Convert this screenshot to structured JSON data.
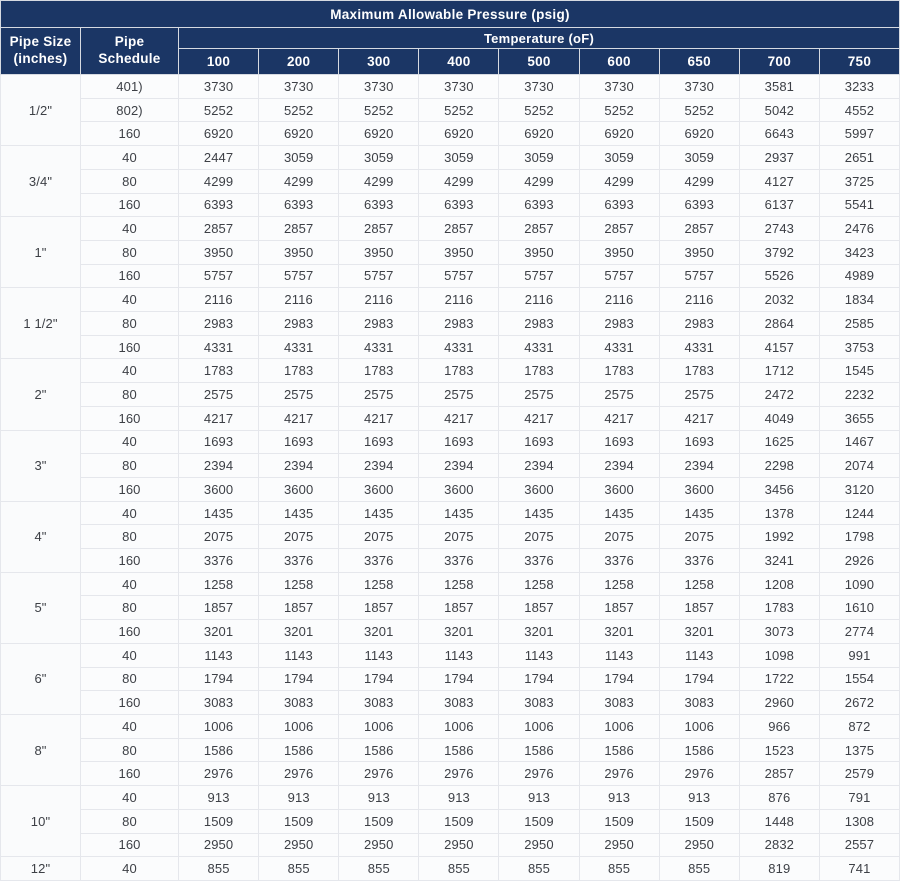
{
  "table": {
    "title": "Maximum Allowable Pressure (psig)",
    "pipe_size_header": "Pipe Size (inches)",
    "pipe_schedule_header": "Pipe Schedule",
    "temperature_header": "Temperature (oF)",
    "temperatures": [
      "100",
      "200",
      "300",
      "400",
      "500",
      "600",
      "650",
      "700",
      "750"
    ]
  },
  "colors": {
    "header_bg": "#1b3665",
    "header_text": "#ffffff",
    "body_text": "#3d4046",
    "grid_line": "#e5e7ec",
    "header_grid_line": "#d6dae1"
  },
  "chart_data": {
    "type": "table",
    "title": "Maximum Allowable Pressure (psig)",
    "columns": [
      "Pipe Size (inches)",
      "Pipe Schedule",
      "100",
      "200",
      "300",
      "400",
      "500",
      "600",
      "650",
      "700",
      "750"
    ],
    "temperature_unit_label": "Temperature (oF)",
    "groups": [
      {
        "pipe_size": "1/2\"",
        "rows": [
          {
            "schedule": "401)",
            "values": [
              3730,
              3730,
              3730,
              3730,
              3730,
              3730,
              3730,
              3581,
              3233
            ]
          },
          {
            "schedule": "802)",
            "values": [
              5252,
              5252,
              5252,
              5252,
              5252,
              5252,
              5252,
              5042,
              4552
            ]
          },
          {
            "schedule": "160",
            "values": [
              6920,
              6920,
              6920,
              6920,
              6920,
              6920,
              6920,
              6643,
              5997
            ]
          }
        ]
      },
      {
        "pipe_size": "3/4\"",
        "rows": [
          {
            "schedule": "40",
            "values": [
              2447,
              3059,
              3059,
              3059,
              3059,
              3059,
              3059,
              2937,
              2651
            ]
          },
          {
            "schedule": "80",
            "values": [
              4299,
              4299,
              4299,
              4299,
              4299,
              4299,
              4299,
              4127,
              3725
            ]
          },
          {
            "schedule": "160",
            "values": [
              6393,
              6393,
              6393,
              6393,
              6393,
              6393,
              6393,
              6137,
              5541
            ]
          }
        ]
      },
      {
        "pipe_size": "1\"",
        "rows": [
          {
            "schedule": "40",
            "values": [
              2857,
              2857,
              2857,
              2857,
              2857,
              2857,
              2857,
              2743,
              2476
            ]
          },
          {
            "schedule": "80",
            "values": [
              3950,
              3950,
              3950,
              3950,
              3950,
              3950,
              3950,
              3792,
              3423
            ]
          },
          {
            "schedule": "160",
            "values": [
              5757,
              5757,
              5757,
              5757,
              5757,
              5757,
              5757,
              5526,
              4989
            ]
          }
        ]
      },
      {
        "pipe_size": "1 1/2\"",
        "rows": [
          {
            "schedule": "40",
            "values": [
              2116,
              2116,
              2116,
              2116,
              2116,
              2116,
              2116,
              2032,
              1834
            ]
          },
          {
            "schedule": "80",
            "values": [
              2983,
              2983,
              2983,
              2983,
              2983,
              2983,
              2983,
              2864,
              2585
            ]
          },
          {
            "schedule": "160",
            "values": [
              4331,
              4331,
              4331,
              4331,
              4331,
              4331,
              4331,
              4157,
              3753
            ]
          }
        ]
      },
      {
        "pipe_size": "2\"",
        "rows": [
          {
            "schedule": "40",
            "values": [
              1783,
              1783,
              1783,
              1783,
              1783,
              1783,
              1783,
              1712,
              1545
            ]
          },
          {
            "schedule": "80",
            "values": [
              2575,
              2575,
              2575,
              2575,
              2575,
              2575,
              2575,
              2472,
              2232
            ]
          },
          {
            "schedule": "160",
            "values": [
              4217,
              4217,
              4217,
              4217,
              4217,
              4217,
              4217,
              4049,
              3655
            ]
          }
        ]
      },
      {
        "pipe_size": "3\"",
        "rows": [
          {
            "schedule": "40",
            "values": [
              1693,
              1693,
              1693,
              1693,
              1693,
              1693,
              1693,
              1625,
              1467
            ]
          },
          {
            "schedule": "80",
            "values": [
              2394,
              2394,
              2394,
              2394,
              2394,
              2394,
              2394,
              2298,
              2074
            ]
          },
          {
            "schedule": "160",
            "values": [
              3600,
              3600,
              3600,
              3600,
              3600,
              3600,
              3600,
              3456,
              3120
            ]
          }
        ]
      },
      {
        "pipe_size": "4\"",
        "rows": [
          {
            "schedule": "40",
            "values": [
              1435,
              1435,
              1435,
              1435,
              1435,
              1435,
              1435,
              1378,
              1244
            ]
          },
          {
            "schedule": "80",
            "values": [
              2075,
              2075,
              2075,
              2075,
              2075,
              2075,
              2075,
              1992,
              1798
            ]
          },
          {
            "schedule": "160",
            "values": [
              3376,
              3376,
              3376,
              3376,
              3376,
              3376,
              3376,
              3241,
              2926
            ]
          }
        ]
      },
      {
        "pipe_size": "5\"",
        "rows": [
          {
            "schedule": "40",
            "values": [
              1258,
              1258,
              1258,
              1258,
              1258,
              1258,
              1258,
              1208,
              1090
            ]
          },
          {
            "schedule": "80",
            "values": [
              1857,
              1857,
              1857,
              1857,
              1857,
              1857,
              1857,
              1783,
              1610
            ]
          },
          {
            "schedule": "160",
            "values": [
              3201,
              3201,
              3201,
              3201,
              3201,
              3201,
              3201,
              3073,
              2774
            ]
          }
        ]
      },
      {
        "pipe_size": "6\"",
        "rows": [
          {
            "schedule": "40",
            "values": [
              1143,
              1143,
              1143,
              1143,
              1143,
              1143,
              1143,
              1098,
              991
            ]
          },
          {
            "schedule": "80",
            "values": [
              1794,
              1794,
              1794,
              1794,
              1794,
              1794,
              1794,
              1722,
              1554
            ]
          },
          {
            "schedule": "160",
            "values": [
              3083,
              3083,
              3083,
              3083,
              3083,
              3083,
              3083,
              2960,
              2672
            ]
          }
        ]
      },
      {
        "pipe_size": "8\"",
        "rows": [
          {
            "schedule": "40",
            "values": [
              1006,
              1006,
              1006,
              1006,
              1006,
              1006,
              1006,
              966,
              872
            ]
          },
          {
            "schedule": "80",
            "values": [
              1586,
              1586,
              1586,
              1586,
              1586,
              1586,
              1586,
              1523,
              1375
            ]
          },
          {
            "schedule": "160",
            "values": [
              2976,
              2976,
              2976,
              2976,
              2976,
              2976,
              2976,
              2857,
              2579
            ]
          }
        ]
      },
      {
        "pipe_size": "10\"",
        "rows": [
          {
            "schedule": "40",
            "values": [
              913,
              913,
              913,
              913,
              913,
              913,
              913,
              876,
              791
            ]
          },
          {
            "schedule": "80",
            "values": [
              1509,
              1509,
              1509,
              1509,
              1509,
              1509,
              1509,
              1448,
              1308
            ]
          },
          {
            "schedule": "160",
            "values": [
              2950,
              2950,
              2950,
              2950,
              2950,
              2950,
              2950,
              2832,
              2557
            ]
          }
        ]
      },
      {
        "pipe_size": "12\"",
        "rows": [
          {
            "schedule": "40",
            "values": [
              855,
              855,
              855,
              855,
              855,
              855,
              855,
              819,
              741
            ]
          }
        ]
      }
    ]
  }
}
